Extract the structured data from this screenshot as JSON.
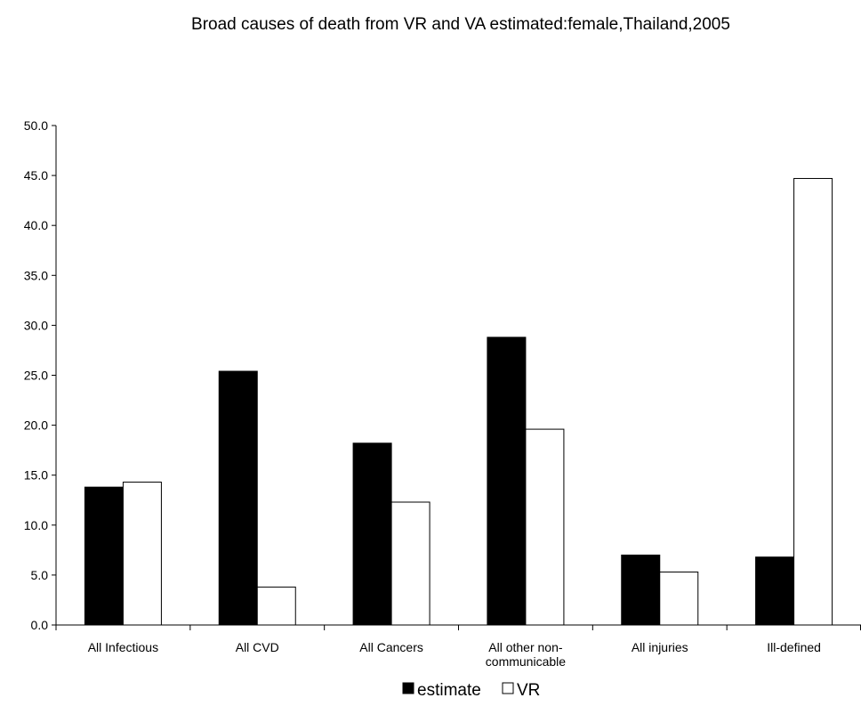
{
  "chart_data": {
    "type": "bar",
    "title": "Broad causes of death from VR and VA estimated:female,Thailand,2005",
    "xlabel": "",
    "ylabel": "",
    "categories": [
      "All Infectious",
      "All CVD",
      "All Cancers",
      "All other non-communicable",
      "All injuries",
      "Ill-defined"
    ],
    "category_lines": [
      [
        "All Infectious"
      ],
      [
        "All CVD"
      ],
      [
        "All Cancers"
      ],
      [
        "All other non-",
        "communicable"
      ],
      [
        "All injuries"
      ],
      [
        "Ill-defined"
      ]
    ],
    "series": [
      {
        "name": "estimate",
        "color": "#000000",
        "values": [
          13.8,
          25.4,
          18.2,
          28.8,
          7.0,
          6.8
        ]
      },
      {
        "name": "VR",
        "color": "#ffffff",
        "values": [
          14.3,
          3.8,
          12.3,
          19.6,
          5.3,
          44.7
        ]
      }
    ],
    "ylim": [
      0,
      50
    ],
    "yticks": [
      "0.0",
      "5.0",
      "10.0",
      "15.0",
      "20.0",
      "25.0",
      "30.0",
      "35.0",
      "40.0",
      "45.0",
      "50.0"
    ],
    "ytick_values": [
      0,
      5,
      10,
      15,
      20,
      25,
      30,
      35,
      40,
      45,
      50
    ],
    "grid": false,
    "legend_position": "bottom-center"
  }
}
